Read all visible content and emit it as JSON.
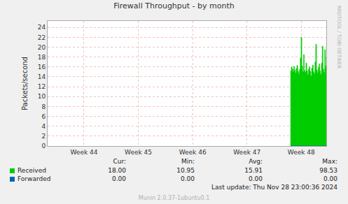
{
  "chart_data": {
    "type": "area",
    "title": "Firewall Throughput - by month",
    "y_label": "Packets/second",
    "side_text": "RRDTOOL / TOBI OETIKER",
    "footer": "Munin 2.0.37-1ubuntu0.1",
    "last_update": "Last update: Thu Nov 28 23:00:36 2024",
    "x": [
      47.8,
      47.815,
      47.83,
      47.845,
      47.86,
      47.875,
      47.89,
      47.905,
      47.92,
      47.935,
      47.95,
      47.965,
      47.98,
      47.995,
      48.01,
      48.025,
      48.04,
      48.055,
      48.07,
      48.085,
      48.1,
      48.115,
      48.13,
      48.145,
      48.16,
      48.175,
      48.19,
      48.205,
      48.22,
      48.235,
      48.25,
      48.265,
      48.28,
      48.295,
      48.31,
      48.325,
      48.34,
      48.355,
      48.37,
      48.385,
      48.4,
      48.415,
      48.43,
      48.445,
      48.46
    ],
    "xlim": [
      43.33,
      48.46
    ],
    "xticks": [
      {
        "value": 44,
        "label": "Week 44"
      },
      {
        "value": 45,
        "label": "Week 45"
      },
      {
        "value": 46,
        "label": "Week 46"
      },
      {
        "value": 47,
        "label": "Week 47"
      },
      {
        "value": 48,
        "label": "Week 48"
      }
    ],
    "ylim": [
      0,
      25.3
    ],
    "yticks": [
      0,
      2,
      4,
      6,
      8,
      10,
      12,
      14,
      16,
      18,
      20,
      22,
      24
    ],
    "grid": true,
    "stats_columns": [
      "Cur:",
      "Min:",
      "Avg:",
      "Max:"
    ],
    "series": [
      {
        "name": "Received",
        "color": "#00cc00",
        "type": "area",
        "values": [
          15.2,
          16.0,
          15.6,
          15.0,
          16.1,
          15.4,
          14.8,
          15.7,
          16.3,
          15.1,
          14.6,
          15.5,
          17.8,
          22.0,
          16.2,
          15.0,
          18.5,
          15.3,
          14.9,
          16.8,
          15.2,
          14.4,
          15.6,
          16.0,
          15.1,
          14.2,
          15.8,
          16.4,
          15.0,
          14.6,
          17.0,
          20.6,
          15.4,
          14.8,
          15.9,
          16.6,
          15.2,
          14.5,
          16.8,
          20.2,
          15.6,
          14.9,
          19.5,
          16.2,
          18.0
        ],
        "stats": [
          "18.00",
          "10.95",
          "15.91",
          "98.53"
        ]
      },
      {
        "name": "Forwarded",
        "color": "#0066b3",
        "type": "line",
        "values": [
          0,
          0,
          0,
          0,
          0,
          0,
          0,
          0,
          0,
          0,
          0,
          0,
          0,
          0,
          0,
          0,
          0,
          0,
          0,
          0,
          0,
          0,
          0,
          0,
          0,
          0,
          0,
          0,
          0,
          0,
          0,
          0,
          0,
          0,
          0,
          0,
          0,
          0,
          0,
          0,
          0,
          0,
          0,
          0,
          0
        ],
        "stats": [
          "0.00",
          "0.00",
          "0.00",
          "0.00"
        ]
      }
    ]
  }
}
